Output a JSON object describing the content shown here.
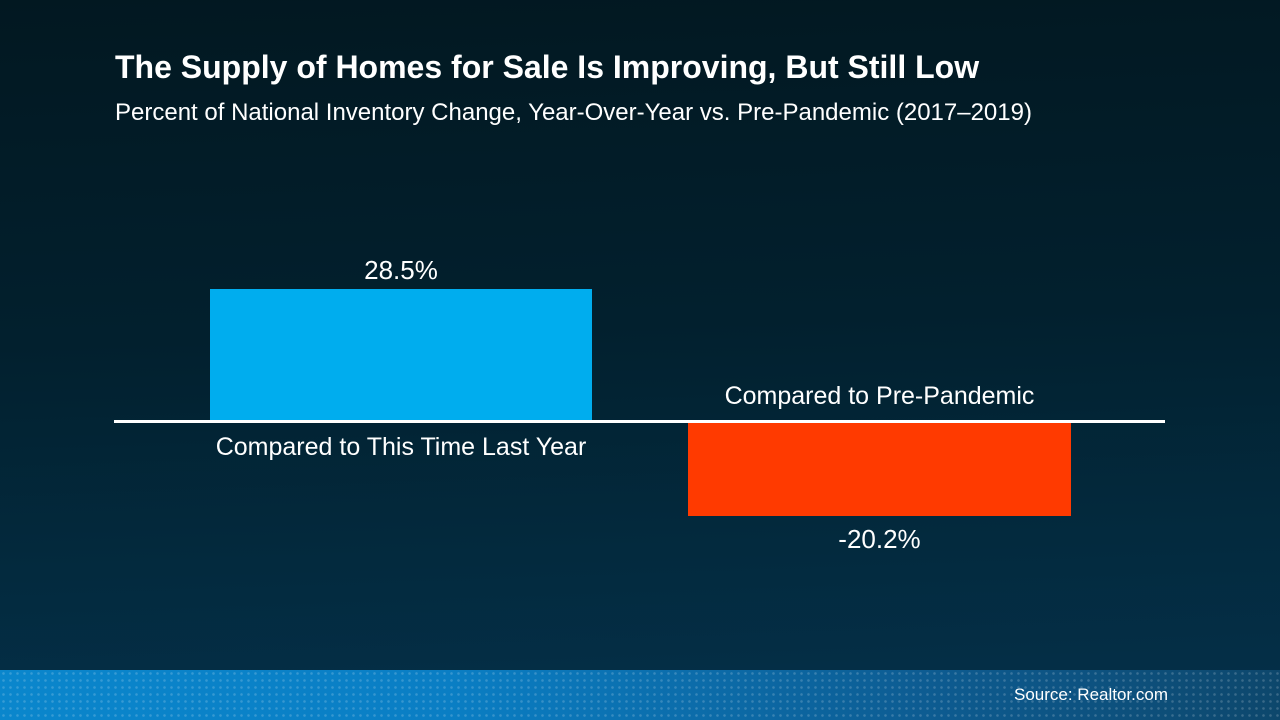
{
  "slide": {
    "title": "The Supply of Homes for Sale Is Improving, But Still Low",
    "subtitle": "Percent of National Inventory Change, Year-Over-Year vs. Pre-Pandemic (2017–2019)"
  },
  "chart_data": {
    "type": "bar",
    "categories": [
      "Compared to This Time Last Year",
      "Compared to Pre-Pandemic"
    ],
    "values": [
      28.5,
      -20.2
    ],
    "value_labels": [
      "28.5%",
      "-20.2%"
    ],
    "title": "The Supply of Homes for Sale Is Improving, But Still Low",
    "subtitle": "Percent of National Inventory Change, Year-Over-Year vs. Pre-Pandemic (2017–2019)",
    "xlabel": "",
    "ylabel": "",
    "baseline": 0,
    "grid": false,
    "legend": false,
    "orientation": "vertical",
    "colors": {
      "positive_bar": "#00adee",
      "negative_bar": "#ff3a00",
      "axis_line": "#ffffff",
      "label_text": "#ffffff"
    }
  },
  "footer": {
    "source": "Source: Realtor.com"
  },
  "theme": {
    "background_top": "#021821",
    "background_bottom": "#04304a",
    "footer_gradient_left": "#0a86cc",
    "footer_gradient_right": "#0d476c",
    "text_color": "#ffffff"
  }
}
